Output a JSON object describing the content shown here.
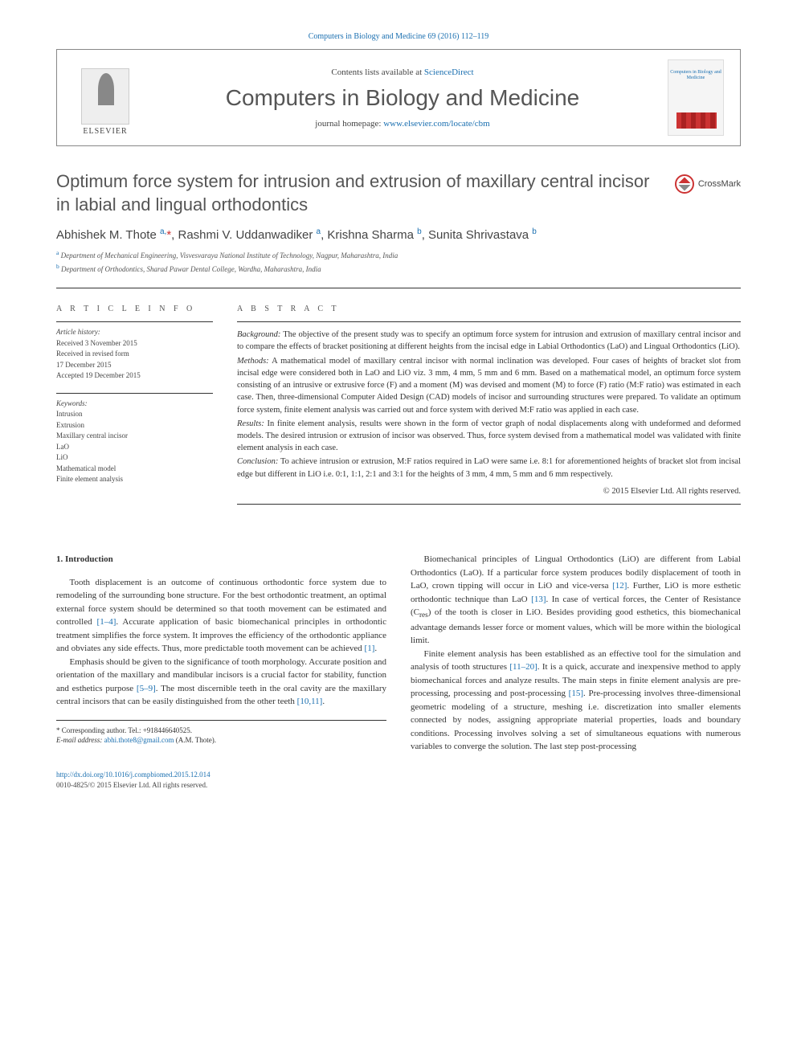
{
  "header": {
    "top_citation": "Computers in Biology and Medicine 69 (2016) 112–119",
    "contents_prefix": "Contents lists available at ",
    "contents_link_text": "ScienceDirect",
    "journal_title": "Computers in Biology and Medicine",
    "homepage_prefix": "journal homepage: ",
    "homepage_link_text": "www.elsevier.com/locate/cbm",
    "elsevier_text": "ELSEVIER",
    "cover_title": "Computers in Biology and Medicine",
    "crossmark_label": "CrossMark"
  },
  "article": {
    "title": "Optimum force system for intrusion and extrusion of maxillary central incisor in labial and lingual orthodontics",
    "authors_html": "Abhishek M. Thote <sup>a,</sup><span class='asterisk'>*</span>, Rashmi V. Uddanwadiker <sup>a</sup>, Krishna Sharma <sup>b</sup>, Sunita Shrivastava <sup>b</sup>",
    "affiliations": [
      {
        "sup": "a",
        "text": "Department of Mechanical Engineering, Visvesvaraya National Institute of Technology, Nagpur, Maharashtra, India"
      },
      {
        "sup": "b",
        "text": "Department of Orthodontics, Sharad Pawar Dental College, Wardha, Maharashtra, India"
      }
    ]
  },
  "article_info": {
    "heading": "A R T I C L E  I N F O",
    "history_label": "Article history:",
    "history_lines": [
      "Received 3 November 2015",
      "Received in revised form",
      "17 December 2015",
      "Accepted 19 December 2015"
    ],
    "keywords_label": "Keywords:",
    "keywords": [
      "Intrusion",
      "Extrusion",
      "Maxillary central incisor",
      "LaO",
      "LiO",
      "Mathematical model",
      "Finite element analysis"
    ]
  },
  "abstract": {
    "heading": "A B S T R A C T",
    "sections": [
      {
        "label": "Background:",
        "text": "The objective of the present study was to specify an optimum force system for intrusion and extrusion of maxillary central incisor and to compare the effects of bracket positioning at different heights from the incisal edge in Labial Orthodontics (LaO) and Lingual Orthodontics (LiO)."
      },
      {
        "label": "Methods:",
        "text": "A mathematical model of maxillary central incisor with normal inclination was developed. Four cases of heights of bracket slot from incisal edge were considered both in LaO and LiO viz. 3 mm, 4 mm, 5 mm and 6 mm. Based on a mathematical model, an optimum force system consisting of an intrusive or extrusive force (F) and a moment (M) was devised and moment (M) to force (F) ratio (M:F ratio) was estimated in each case. Then, three-dimensional Computer Aided Design (CAD) models of incisor and surrounding structures were prepared. To validate an optimum force system, finite element analysis was carried out and force system with derived M:F ratio was applied in each case."
      },
      {
        "label": "Results:",
        "text": "In finite element analysis, results were shown in the form of vector graph of nodal displacements along with undeformed and deformed models. The desired intrusion or extrusion of incisor was observed. Thus, force system devised from a mathematical model was validated with finite element analysis in each case."
      },
      {
        "label": "Conclusion:",
        "text": "To achieve intrusion or extrusion, M:F ratios required in LaO were same i.e. 8:1 for aforementioned heights of bracket slot from incisal edge but different in LiO i.e. 0:1, 1:1, 2:1 and 3:1 for the heights of 3 mm, 4 mm, 5 mm and 6 mm respectively."
      }
    ],
    "copyright": "© 2015 Elsevier Ltd. All rights reserved."
  },
  "body": {
    "intro_heading": "1.  Introduction",
    "col1_paras": [
      "Tooth displacement is an outcome of continuous orthodontic force system due to remodeling of the surrounding bone structure. For the best orthodontic treatment, an optimal external force system should be determined so that tooth movement can be estimated and controlled <a class='ref-link'>[1–4]</a>. Accurate application of basic biomechanical principles in orthodontic treatment simplifies the force system. It improves the efficiency of the orthodontic appliance and obviates any side effects. Thus, more predictable tooth movement can be achieved <a class='ref-link'>[1]</a>.",
      "Emphasis should be given to the significance of tooth morphology. Accurate position and orientation of the maxillary and mandibular incisors is a crucial factor for stability, function and esthetics purpose <a class='ref-link'>[5–9]</a>. The most discernible teeth in the oral cavity are the maxillary central incisors that can be easily distinguished from the other teeth <a class='ref-link'>[10,11]</a>."
    ],
    "col2_paras": [
      "Biomechanical principles of Lingual Orthodontics (LiO) are different from Labial Orthodontics (LaO). If a particular force system produces bodily displacement of tooth in LaO, crown tipping will occur in LiO and vice-versa <a class='ref-link'>[12]</a>. Further, LiO is more esthetic orthodontic technique than LaO <a class='ref-link'>[13]</a>. In case of vertical forces, the Center of Resistance (C<sub>res</sub>) of the tooth is closer in LiO. Besides providing good esthetics, this biomechanical advantage demands lesser force or moment values, which will be more within the biological limit.",
      "Finite element analysis has been established as an effective tool for the simulation and analysis of tooth structures <a class='ref-link'>[11–20]</a>. It is a quick, accurate and inexpensive method to apply biomechanical forces and analyze results. The main steps in finite element analysis are pre-processing, processing and post-processing <a class='ref-link'>[15]</a>. Pre-processing involves three-dimensional geometric modeling of a structure, meshing i.e. discretization into smaller elements connected by nodes, assigning appropriate material properties, loads and boundary conditions. Processing involves solving a set of simultaneous equations with numerous variables to converge the solution. The last step post-processing"
    ],
    "corr_author_label": "* Corresponding author. Tel.: +918446640525.",
    "email_label": "E-mail address: ",
    "email": "abhi.thote8@gmail.com",
    "email_suffix": " (A.M. Thote).",
    "doi": "http://dx.doi.org/10.1016/j.compbiomed.2015.12.014",
    "issn_line": "0010-4825/© 2015 Elsevier Ltd. All rights reserved."
  },
  "colors": {
    "link": "#1a6fb0",
    "text": "#333333",
    "muted": "#555555",
    "accent_red": "#c33"
  }
}
